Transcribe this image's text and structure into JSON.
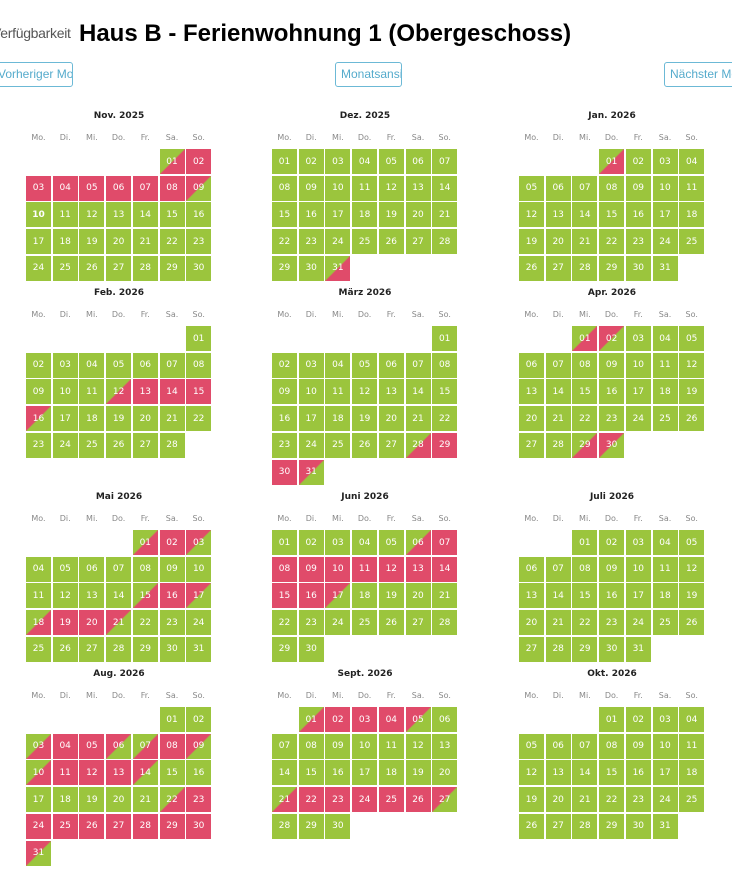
{
  "header": {
    "availability_label": "Verfügbarkeit",
    "title": "Haus B - Ferienwohnung 1 (Obergeschoss)"
  },
  "nav": {
    "prev_label": "Vorheriger Monat",
    "month_view_label": "Monatsansicht",
    "next_label": "Nächster Monat"
  },
  "weekdays": [
    "Mo.",
    "Di.",
    "Mi.",
    "Do.",
    "Fr.",
    "Sa.",
    "So."
  ],
  "colors": {
    "free": "#9bc53d",
    "booked": "#e04b6a",
    "accent": "#55abcc"
  },
  "today": {
    "month_index": 0,
    "day": 10
  },
  "months": [
    {
      "name": "Nov. 2025",
      "offset": 5,
      "days": 30,
      "booked": [
        [
          1,
          9
        ]
      ]
    },
    {
      "name": "Dez. 2025",
      "offset": 0,
      "days": 31,
      "booked": [
        [
          31,
          31
        ]
      ]
    },
    {
      "name": "Jan. 2026",
      "offset": 3,
      "days": 31,
      "booked": [
        [
          1,
          1
        ]
      ]
    },
    {
      "name": "Feb. 2026",
      "offset": 6,
      "days": 28,
      "booked": [
        [
          12,
          16
        ]
      ]
    },
    {
      "name": "März 2026",
      "offset": 6,
      "days": 31,
      "booked": [
        [
          28,
          31
        ]
      ]
    },
    {
      "name": "Apr. 2026",
      "offset": 2,
      "days": 30,
      "booked": [
        [
          1,
          2
        ],
        [
          29,
          30
        ]
      ]
    },
    {
      "name": "Mai 2026",
      "offset": 4,
      "days": 31,
      "booked": [
        [
          1,
          3
        ],
        [
          15,
          17
        ],
        [
          18,
          21
        ]
      ]
    },
    {
      "name": "Juni 2026",
      "offset": 0,
      "days": 30,
      "booked": [
        [
          6,
          17
        ]
      ]
    },
    {
      "name": "Juli 2026",
      "offset": 2,
      "days": 31,
      "booked": []
    },
    {
      "name": "Aug. 2026",
      "offset": 5,
      "days": 31,
      "booked": [
        [
          3,
          6
        ],
        [
          7,
          9
        ],
        [
          10,
          14
        ],
        [
          22,
          31
        ]
      ]
    },
    {
      "name": "Sept. 2026",
      "offset": 1,
      "days": 30,
      "booked": [
        [
          1,
          5
        ],
        [
          21,
          27
        ]
      ]
    },
    {
      "name": "Okt. 2026",
      "offset": 3,
      "days": 31,
      "booked": []
    }
  ]
}
